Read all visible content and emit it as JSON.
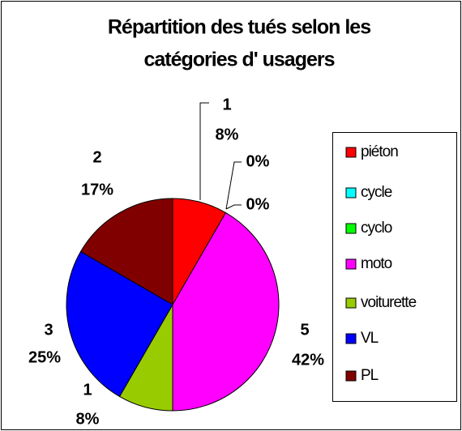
{
  "chart_data": {
    "type": "pie",
    "title": [
      "Répartition des tués selon les",
      "catégories d' usagers"
    ],
    "categories": [
      "piéton",
      "cycle",
      "cyclo",
      "moto",
      "voiturette",
      "VL",
      "PL"
    ],
    "values": [
      1,
      0,
      0,
      5,
      1,
      3,
      2
    ],
    "percent_labels": [
      "8%",
      "0%",
      "0%",
      "42%",
      "8%",
      "25%",
      "17%"
    ],
    "colors": [
      "#ff0000",
      "#00ffff",
      "#00ff00",
      "#ff00ff",
      "#99cc00",
      "#0000ff",
      "#800000"
    ],
    "legend": "right"
  }
}
